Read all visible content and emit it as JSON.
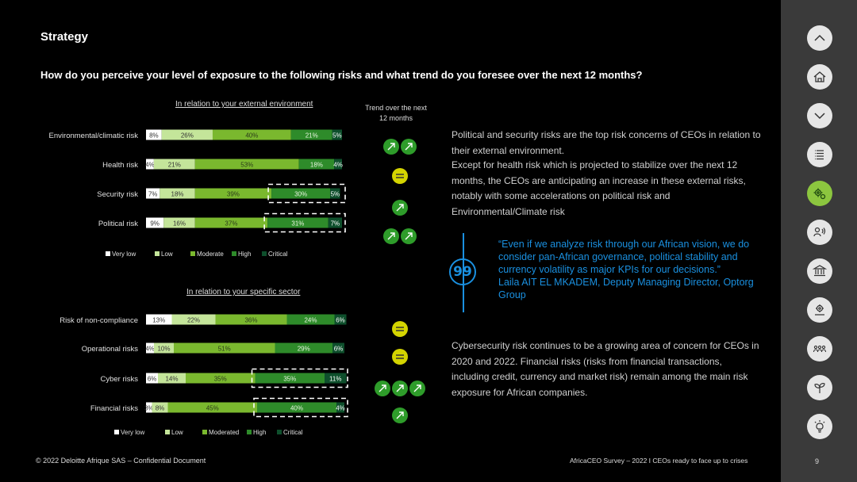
{
  "header": {
    "section_title": "Strategy",
    "question": "How do you perceive your level of exposure to the following risks and what trend do you foresee over the next 12 months?"
  },
  "colors": {
    "very_low": "#ffffff",
    "low": "#c4e59a",
    "moderate": "#7ab82e",
    "high": "#2e8b2a",
    "critical": "#0e4f2c",
    "accent_blue": "#1a90e0"
  },
  "trend_header": "Trend over the next 12 months",
  "chart_data": [
    {
      "type": "bar",
      "stacked": "horizontal-100",
      "title": "In relation to your external environment",
      "categories": [
        "Environmental/climatic risk",
        "Health risk",
        "Security risk",
        "Political risk"
      ],
      "series": [
        {
          "name": "Very low",
          "values": [
            8,
            4,
            7,
            9
          ]
        },
        {
          "name": "Low",
          "values": [
            26,
            21,
            18,
            16
          ]
        },
        {
          "name": "Moderate",
          "values": [
            40,
            53,
            39,
            37
          ]
        },
        {
          "name": "High",
          "values": [
            21,
            18,
            30,
            31
          ]
        },
        {
          "name": "Critical",
          "values": [
            5,
            4,
            5,
            7
          ]
        }
      ],
      "highlighted": [
        "Security risk",
        "Political risk"
      ],
      "trend": [
        [
          "up",
          "up"
        ],
        [
          "stable"
        ],
        [
          "up"
        ],
        [
          "up",
          "up"
        ]
      ],
      "legend_position": "bottom"
    },
    {
      "type": "bar",
      "stacked": "horizontal-100",
      "title": "In relation to your specific sector",
      "categories": [
        "Risk of non-compliance",
        "Operational risks",
        "Cyber risks",
        "Financial risks"
      ],
      "series": [
        {
          "name": "Very low",
          "values": [
            13,
            4,
            6,
            3
          ]
        },
        {
          "name": "Low",
          "values": [
            22,
            10,
            14,
            8
          ]
        },
        {
          "name": "Moderated",
          "values": [
            36,
            51,
            35,
            45
          ]
        },
        {
          "name": "High",
          "values": [
            24,
            29,
            35,
            40
          ]
        },
        {
          "name": "Critical",
          "values": [
            6,
            6,
            11,
            4
          ]
        }
      ],
      "highlighted": [
        "Cyber risks",
        "Financial risks"
      ],
      "trend": [
        [
          "stable"
        ],
        [
          "stable"
        ],
        [
          "up",
          "up",
          "up"
        ],
        [
          "up"
        ]
      ],
      "legend_position": "bottom"
    }
  ],
  "text_blocks": {
    "para1": "Political and security risks are the top risk concerns of CEOs in relation to their external environment.",
    "para2": "Except for health risk which is projected to stabilize over the next 12 months, the CEOs are anticipating an increase in these external risks, notably with some accelerations on political risk and Environmental/Climate risk",
    "quote": "“Even if we analyze risk through our African vision, we do consider pan-African governance, political stability and currency volatility as major KPIs for our decisions.”",
    "quote_author": "Laila AIT EL MKADEM, Deputy Managing Director, Optorg Group",
    "quote_mark": "99",
    "para3": "Cybersecurity risk continues to be a growing area of concern for CEOs in 2020 and 2022. Financial risks (risks from financial transactions, including credit, currency and market risk) remain among the main risk exposure for African companies."
  },
  "footer": {
    "left": "© 2022 Deloitte Afrique SAS – Confidential Document",
    "right": "AfricaCEO Survey – 2022 I CEOs ready to face up to crises",
    "page_number": "9"
  },
  "sidebar": {
    "buttons": [
      {
        "name": "scroll-up",
        "icon": "chevron-up-icon"
      },
      {
        "name": "home",
        "icon": "home-icon"
      },
      {
        "name": "scroll-down",
        "icon": "chevron-down-icon"
      },
      {
        "name": "contents",
        "icon": "list-icon"
      },
      {
        "name": "strategy",
        "icon": "gears-icon",
        "active": true
      },
      {
        "name": "people",
        "icon": "speaker-person-icon"
      },
      {
        "name": "institutions",
        "icon": "bank-icon"
      },
      {
        "name": "technology",
        "icon": "cog-hand-icon"
      },
      {
        "name": "community",
        "icon": "people-group-icon"
      },
      {
        "name": "sustainability",
        "icon": "sprout-icon"
      },
      {
        "name": "innovation",
        "icon": "lightbulb-icon"
      }
    ]
  }
}
